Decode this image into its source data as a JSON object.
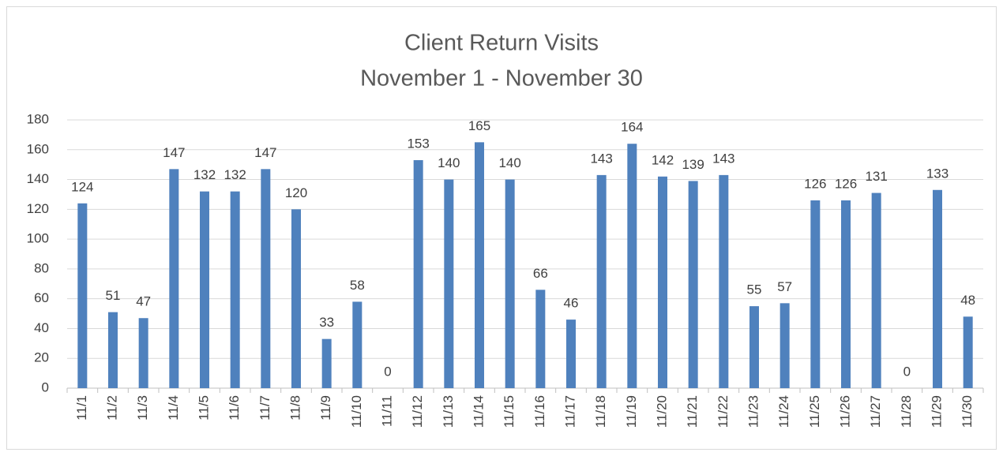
{
  "chart_data": {
    "type": "bar",
    "title": "Client Return Visits",
    "subtitle": "November 1 - November 30",
    "categories": [
      "11/1",
      "11/2",
      "11/3",
      "11/4",
      "11/5",
      "11/6",
      "11/7",
      "11/8",
      "11/9",
      "11/10",
      "11/11",
      "11/12",
      "11/13",
      "11/14",
      "11/15",
      "11/16",
      "11/17",
      "11/18",
      "11/19",
      "11/20",
      "11/21",
      "11/22",
      "11/23",
      "11/24",
      "11/25",
      "11/26",
      "11/27",
      "11/28",
      "11/29",
      "11/30"
    ],
    "values": [
      124,
      51,
      47,
      147,
      132,
      132,
      147,
      120,
      33,
      58,
      0,
      153,
      140,
      165,
      140,
      66,
      46,
      143,
      164,
      142,
      139,
      143,
      55,
      57,
      126,
      126,
      131,
      0,
      133,
      48
    ],
    "color": "#4f81bd",
    "ylim": [
      0,
      180
    ],
    "yticks": [
      0,
      20,
      40,
      60,
      80,
      100,
      120,
      140,
      160,
      180
    ],
    "grid": true
  }
}
